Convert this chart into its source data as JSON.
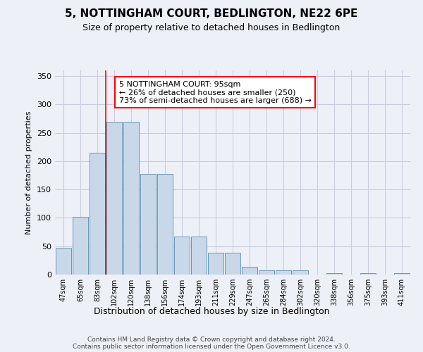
{
  "title": "5, NOTTINGHAM COURT, BEDLINGTON, NE22 6PE",
  "subtitle": "Size of property relative to detached houses in Bedlington",
  "xlabel": "Distribution of detached houses by size in Bedlington",
  "ylabel": "Number of detached properties",
  "footer_line1": "Contains HM Land Registry data © Crown copyright and database right 2024.",
  "footer_line2": "Contains public sector information licensed under the Open Government Licence v3.0.",
  "bar_labels": [
    "47sqm",
    "65sqm",
    "83sqm",
    "102sqm",
    "120sqm",
    "138sqm",
    "156sqm",
    "174sqm",
    "193sqm",
    "211sqm",
    "229sqm",
    "247sqm",
    "265sqm",
    "284sqm",
    "302sqm",
    "320sqm",
    "338sqm",
    "356sqm",
    "375sqm",
    "393sqm",
    "411sqm"
  ],
  "bar_heights": [
    47,
    102,
    215,
    270,
    270,
    178,
    178,
    67,
    67,
    39,
    39,
    14,
    7,
    7,
    7,
    0,
    3,
    0,
    3,
    0,
    3
  ],
  "bar_color": "#c8d8e8",
  "bar_edge_color": "#6699bb",
  "grid_color": "#ccccdd",
  "background_color": "#eef0f8",
  "annotation_box_text": "5 NOTTINGHAM COURT: 95sqm\n← 26% of detached houses are smaller (250)\n73% of semi-detached houses are larger (688) →",
  "annotation_box_color": "white",
  "annotation_box_edge_color": "red",
  "ylim": [
    0,
    360
  ],
  "yticks": [
    0,
    50,
    100,
    150,
    200,
    250,
    300,
    350
  ],
  "red_line_x": 2.5
}
